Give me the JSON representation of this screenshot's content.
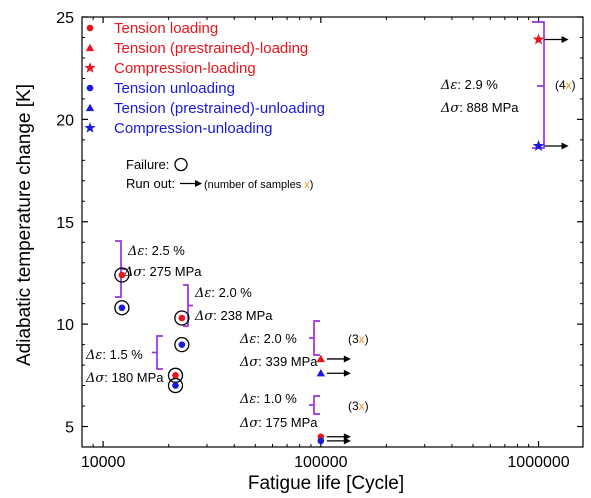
{
  "chart_data": {
    "type": "scatter",
    "xlabel": "Fatigue life [Cycle]",
    "ylabel": "Adiabatic temperature change [K]",
    "x_scale": "log",
    "xlim": [
      8000,
      1600000
    ],
    "ylim": [
      4,
      25
    ],
    "x_ticks": [
      {
        "value": 10000,
        "label": "10000"
      },
      {
        "value": 100000,
        "label": "100000"
      },
      {
        "value": 1000000,
        "label": "1000000"
      }
    ],
    "y_ticks": [
      {
        "value": 5,
        "label": "5"
      },
      {
        "value": 10,
        "label": "10"
      },
      {
        "value": 15,
        "label": "15"
      },
      {
        "value": 20,
        "label": "20"
      },
      {
        "value": 25,
        "label": "25"
      }
    ],
    "grid": false,
    "legend_position": "top-left",
    "legend": [
      {
        "label": "Tension loading",
        "marker": "circle",
        "color": "#e8141b"
      },
      {
        "label": "Tension (prestrained)-loading",
        "marker": "triangle",
        "color": "#e8141b"
      },
      {
        "label": "Compression-loading",
        "marker": "star",
        "color": "#e8141b"
      },
      {
        "label": "Tension unloading",
        "marker": "circle",
        "color": "#1a1adc"
      },
      {
        "label": "Tension (prestrained)-unloading",
        "marker": "triangle",
        "color": "#1a1adc"
      },
      {
        "label": "Compression-unloading",
        "marker": "star",
        "color": "#1a1adc"
      }
    ],
    "key": {
      "failure_label": "Failure:",
      "runout_label": "Run out:",
      "samples_prefix": "(number of samples ",
      "samples_x": "x",
      "samples_suffix": ")"
    },
    "points": [
      {
        "x": 12200,
        "y": 12.4,
        "marker": "circle",
        "color": "#e8141b",
        "failure": true
      },
      {
        "x": 12200,
        "y": 10.8,
        "marker": "circle",
        "color": "#1a1adc",
        "failure": true
      },
      {
        "x": 23000,
        "y": 10.3,
        "marker": "circle",
        "color": "#e8141b",
        "failure": true
      },
      {
        "x": 23000,
        "y": 9.0,
        "marker": "circle",
        "color": "#1a1adc",
        "failure": true
      },
      {
        "x": 21500,
        "y": 7.5,
        "marker": "circle",
        "color": "#e8141b",
        "failure": true
      },
      {
        "x": 21500,
        "y": 7.0,
        "marker": "circle",
        "color": "#1a1adc",
        "failure": true
      },
      {
        "x": 100000,
        "y": 8.3,
        "marker": "triangle",
        "color": "#e8141b",
        "runout": true
      },
      {
        "x": 100000,
        "y": 7.6,
        "marker": "triangle",
        "color": "#1a1adc",
        "runout": true
      },
      {
        "x": 100000,
        "y": 4.5,
        "marker": "circle",
        "color": "#e8141b",
        "runout": true
      },
      {
        "x": 100000,
        "y": 4.3,
        "marker": "circle",
        "color": "#1a1adc",
        "runout": true
      },
      {
        "x": 1000000,
        "y": 23.9,
        "marker": "star",
        "color": "#e8141b",
        "runout": true
      },
      {
        "x": 1000000,
        "y": 18.7,
        "marker": "star",
        "color": "#1a1adc",
        "runout": true
      }
    ],
    "groups": [
      {
        "strain": "2.5 %",
        "stress": "275 MPa",
        "count": null
      },
      {
        "strain": "2.0 %",
        "stress": "238 MPa",
        "count": null
      },
      {
        "strain": "1.5 %",
        "stress": "180 MPa",
        "count": null
      },
      {
        "strain": "2.0 %",
        "stress": "339 MPa",
        "count": "3"
      },
      {
        "strain": "1.0 %",
        "stress": "175 MPa",
        "count": "3"
      },
      {
        "strain": "2.9 %",
        "stress": "888 MPa",
        "count": "4"
      }
    ],
    "annotation_symbols": {
      "strain": "Δε",
      "stress": "Δσ",
      "separator": ": "
    }
  }
}
